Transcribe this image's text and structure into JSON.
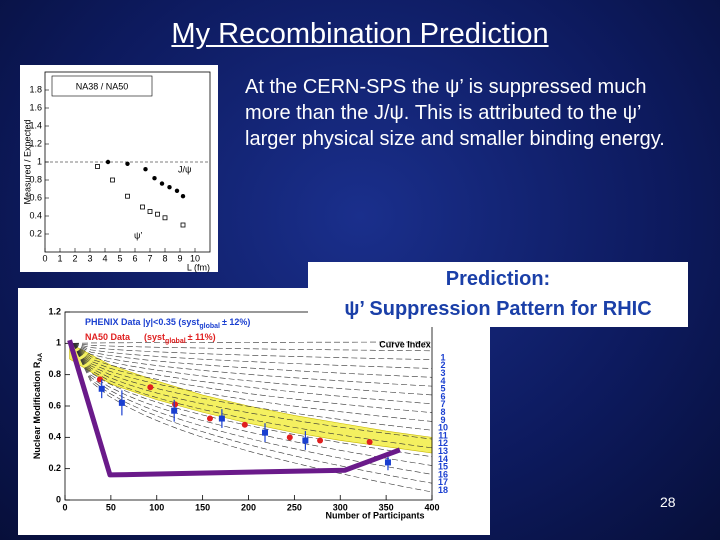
{
  "slide": {
    "title": "My Recombination Prediction",
    "body": "At the CERN-SPS the ψ’ is suppressed much more than the J/ψ.  This is attributed to the ψ’ larger physical size and smaller binding energy.",
    "callout": {
      "line1": "Prediction:",
      "line2": "ψ’ Suppression Pattern for RHIC"
    },
    "page_number": "28"
  },
  "inset_plot": {
    "label": "NA38 / NA50",
    "x_label": "L (fm)",
    "y_label": "Measured / Expected",
    "xlim": [
      0,
      11
    ],
    "ylim": [
      0,
      2
    ],
    "xticks": [
      0,
      1,
      2,
      3,
      4,
      5,
      6,
      7,
      8,
      9,
      10
    ],
    "yticks": [
      0.2,
      0.4,
      0.6,
      0.8,
      1,
      1.2,
      1.4,
      1.6,
      1.8
    ],
    "series": [
      {
        "name": "J/ψ",
        "color": "#000000",
        "x": [
          4.2,
          5.5,
          6.7,
          7.3,
          7.8,
          8.3,
          8.8,
          9.2
        ],
        "values": [
          1.0,
          0.98,
          0.92,
          0.82,
          0.76,
          0.72,
          0.68,
          0.62
        ]
      },
      {
        "name": "ψ’",
        "color": "#000000",
        "x": [
          3.5,
          4.5,
          5.5,
          6.5,
          7.0,
          7.5,
          8.0,
          9.2
        ],
        "values": [
          0.95,
          0.8,
          0.62,
          0.5,
          0.45,
          0.42,
          0.38,
          0.3
        ]
      }
    ]
  },
  "main_plot": {
    "x_label": "Number of Participants",
    "y_label": {
      "text": "Nuclear Modification R",
      "sub": "AA"
    },
    "xlim": [
      0,
      400
    ],
    "ylim": [
      0,
      1.2
    ],
    "xticks": [
      0,
      50,
      100,
      150,
      200,
      250,
      300,
      350,
      400
    ],
    "yticks": [
      0,
      0.2,
      0.4,
      0.6,
      0.8,
      1,
      1.2
    ],
    "legend": [
      {
        "text": "PHENIX Data |y|<0.35 (syst",
        "sub": "global",
        "tail": "± 12%)",
        "color": "#1a3fd0"
      },
      {
        "text": "NA50 Data",
        "text2": "(syst",
        "sub": "global",
        "tail": "± 11%)",
        "color": "#e02020"
      }
    ],
    "curve_index_title": "Curve Index",
    "curve_index": [
      1,
      2,
      3,
      4,
      5,
      6,
      7,
      8,
      9,
      10,
      11,
      12,
      13,
      14,
      15,
      16,
      17,
      18
    ],
    "band": {
      "color": "#f4f060",
      "x": [
        5,
        50,
        100,
        150,
        200,
        250,
        300,
        350,
        400
      ],
      "upper": [
        1.0,
        0.86,
        0.76,
        0.67,
        0.6,
        0.54,
        0.49,
        0.44,
        0.4
      ],
      "lower": [
        0.9,
        0.74,
        0.64,
        0.56,
        0.49,
        0.43,
        0.38,
        0.34,
        0.3
      ]
    },
    "prediction": {
      "color": "#6a1a8a",
      "x": [
        5,
        49,
        305,
        365
      ],
      "values": [
        1.02,
        0.16,
        0.19,
        0.32
      ]
    },
    "na50": {
      "color": "#e02020",
      "x": [
        38,
        93,
        120,
        158,
        196,
        245,
        278,
        332
      ],
      "values": [
        0.77,
        0.72,
        0.61,
        0.52,
        0.48,
        0.4,
        0.38,
        0.37
      ]
    },
    "phenix": {
      "color": "#1a3fd0",
      "x": [
        40,
        62,
        119,
        171,
        218,
        262,
        352
      ],
      "values": [
        0.71,
        0.62,
        0.57,
        0.52,
        0.43,
        0.38,
        0.24
      ],
      "errors": [
        0.06,
        0.08,
        0.07,
        0.06,
        0.06,
        0.06,
        0.05
      ]
    }
  }
}
